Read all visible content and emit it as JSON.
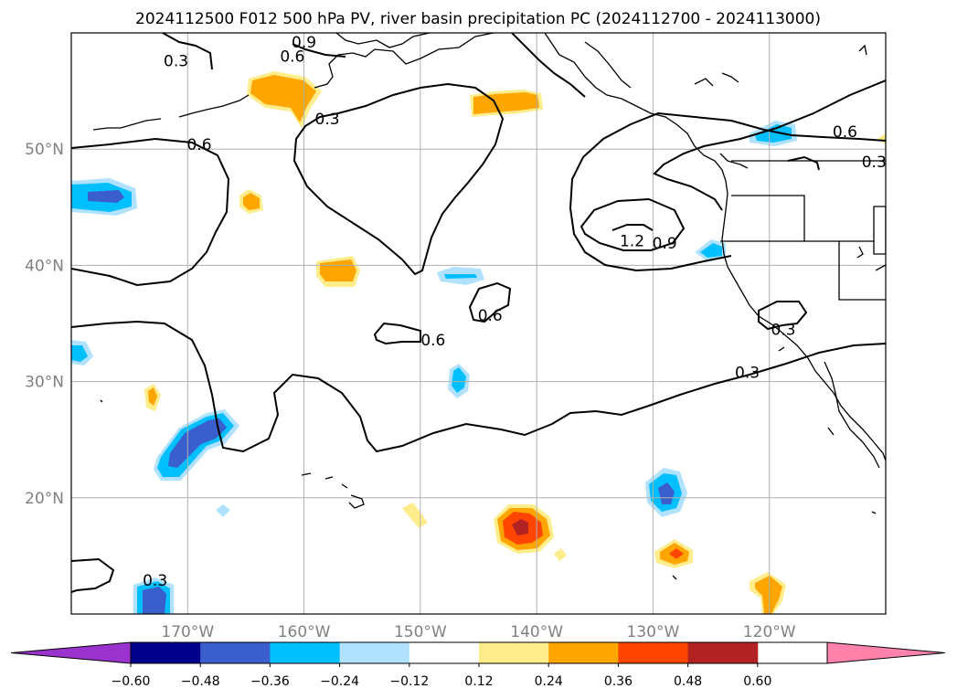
{
  "title": "2024112500 F012 500 hPa PV, river basin precipitation PC (2024112700 - 2024113000)",
  "lon_ticks": [
    {
      "label": "170°W",
      "lon": -170
    },
    {
      "label": "160°W",
      "lon": -160
    },
    {
      "label": "150°W",
      "lon": -150
    },
    {
      "label": "140°W",
      "lon": -140
    },
    {
      "label": "130°W",
      "lon": -130
    },
    {
      "label": "120°W",
      "lon": -120
    }
  ],
  "lat_ticks": [
    {
      "label": "50°N",
      "lat": 50
    },
    {
      "label": "40°N",
      "lat": 40
    },
    {
      "label": "30°N",
      "lat": 30
    },
    {
      "label": "20°N",
      "lat": 20
    }
  ],
  "map_extent": {
    "lon_min": -180,
    "lon_max": -110,
    "lat_min": 10,
    "lat_max": 60
  },
  "colorbar": {
    "ticks": [
      "−0.60",
      "−0.48",
      "−0.36",
      "−0.24",
      "−0.12",
      "0.12",
      "0.24",
      "0.36",
      "0.48",
      "0.60"
    ],
    "colors": [
      "#9a32cd",
      "#00008b",
      "#3a5fcd",
      "#00bfff",
      "#b0e2ff",
      "#ffffff",
      "#ffec8b",
      "#ffa500",
      "#ff4500",
      "#b22222",
      "#ff82ab"
    ],
    "extend": "both"
  },
  "contour_labels": [
    {
      "text": "0.9",
      "lon": -160,
      "lat": 59.2
    },
    {
      "text": "0.6",
      "lon": -161,
      "lat": 58
    },
    {
      "text": "0.3",
      "lon": -171,
      "lat": 57.6
    },
    {
      "text": "0.3",
      "lon": -158,
      "lat": 52.6
    },
    {
      "text": "0.6",
      "lon": -169,
      "lat": 50.4
    },
    {
      "text": "0.6",
      "lon": -113.5,
      "lat": 51.5
    },
    {
      "text": "0.3",
      "lon": -111,
      "lat": 48.9
    },
    {
      "text": "1.2",
      "lon": -131.8,
      "lat": 42.1
    },
    {
      "text": "0.9",
      "lon": -129,
      "lat": 41.9
    },
    {
      "text": "0.6",
      "lon": -144,
      "lat": 35.7
    },
    {
      "text": "0.6",
      "lon": -148.9,
      "lat": 33.6
    },
    {
      "text": "0.3",
      "lon": -118.8,
      "lat": 34.5
    },
    {
      "text": "0.3",
      "lon": -121.9,
      "lat": 30.8
    },
    {
      "text": "0.3",
      "lon": -172.8,
      "lat": 12.9
    }
  ]
}
